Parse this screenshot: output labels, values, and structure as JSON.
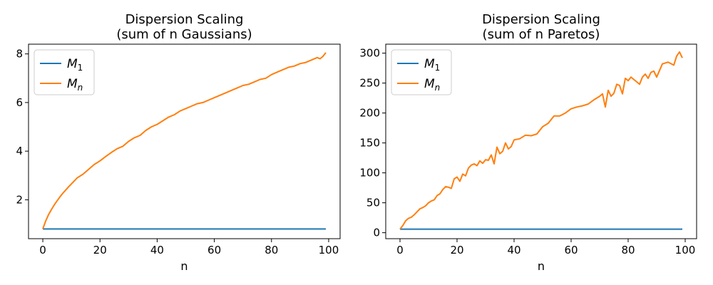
{
  "chart_data": [
    {
      "type": "line",
      "title": [
        "Dispersion Scaling",
        "(sum of n Gaussians)"
      ],
      "xlabel": "n",
      "ylabel": "",
      "xlim": [
        -5,
        104
      ],
      "ylim": [
        0.4,
        8.4
      ],
      "xticks": [
        0,
        20,
        40,
        60,
        80,
        100
      ],
      "yticks": [
        2,
        4,
        6,
        8
      ],
      "legend": "top-left",
      "grid": false,
      "series": [
        {
          "name": "M_1",
          "color": "#1f77b4",
          "x": [
            0,
            99
          ],
          "y": [
            0.8,
            0.8
          ]
        },
        {
          "name": "M_n",
          "color": "#ff7f0e",
          "x": [
            0,
            1,
            2,
            3,
            4,
            5,
            6,
            7,
            8,
            9,
            10,
            12,
            14,
            16,
            18,
            20,
            22,
            24,
            26,
            28,
            30,
            32,
            34,
            36,
            38,
            40,
            42,
            44,
            46,
            48,
            50,
            52,
            54,
            56,
            58,
            60,
            62,
            64,
            66,
            68,
            70,
            72,
            74,
            76,
            78,
            80,
            82,
            84,
            86,
            88,
            90,
            92,
            94,
            96,
            97,
            98,
            99
          ],
          "y": [
            0.8,
            1.13,
            1.39,
            1.6,
            1.79,
            1.96,
            2.12,
            2.27,
            2.4,
            2.53,
            2.65,
            2.9,
            3.05,
            3.25,
            3.45,
            3.6,
            3.78,
            3.95,
            4.1,
            4.2,
            4.4,
            4.55,
            4.65,
            4.85,
            5.0,
            5.1,
            5.25,
            5.4,
            5.5,
            5.65,
            5.75,
            5.85,
            5.95,
            6.0,
            6.1,
            6.2,
            6.3,
            6.4,
            6.5,
            6.6,
            6.7,
            6.75,
            6.85,
            6.95,
            7.0,
            7.15,
            7.25,
            7.35,
            7.45,
            7.5,
            7.6,
            7.65,
            7.75,
            7.85,
            7.8,
            7.9,
            8.05
          ]
        }
      ]
    },
    {
      "type": "line",
      "title": [
        "Dispersion Scaling",
        "(sum of n Paretos)"
      ],
      "xlabel": "n",
      "ylabel": "",
      "xlim": [
        -5,
        104
      ],
      "ylim": [
        -10,
        315
      ],
      "xticks": [
        0,
        20,
        40,
        60,
        80,
        100
      ],
      "yticks": [
        0,
        50,
        100,
        150,
        200,
        250,
        300
      ],
      "legend": "top-left",
      "grid": false,
      "series": [
        {
          "name": "M_1",
          "color": "#1f77b4",
          "x": [
            0,
            99
          ],
          "y": [
            6,
            6
          ]
        },
        {
          "name": "M_n",
          "color": "#ff7f0e",
          "x": [
            0,
            1,
            2,
            3,
            4,
            5,
            6,
            7,
            8,
            9,
            10,
            11,
            12,
            13,
            14,
            15,
            16,
            17,
            18,
            19,
            20,
            21,
            22,
            23,
            24,
            25,
            26,
            27,
            28,
            29,
            30,
            31,
            32,
            33,
            34,
            35,
            36,
            37,
            38,
            39,
            40,
            42,
            44,
            46,
            48,
            50,
            52,
            54,
            56,
            58,
            60,
            62,
            64,
            66,
            68,
            70,
            71,
            72,
            73,
            74,
            75,
            76,
            77,
            78,
            79,
            80,
            81,
            82,
            83,
            84,
            85,
            86,
            87,
            88,
            89,
            90,
            92,
            94,
            96,
            97,
            98,
            99
          ],
          "y": [
            6,
            12,
            20,
            24,
            26,
            30,
            35,
            40,
            42,
            45,
            50,
            53,
            55,
            62,
            65,
            72,
            77,
            76,
            74,
            90,
            93,
            86,
            98,
            95,
            108,
            113,
            115,
            112,
            120,
            116,
            122,
            121,
            130,
            115,
            143,
            132,
            136,
            150,
            140,
            144,
            155,
            157,
            163,
            162,
            165,
            177,
            183,
            195,
            195,
            200,
            207,
            210,
            212,
            215,
            222,
            228,
            232,
            210,
            238,
            228,
            233,
            248,
            246,
            232,
            258,
            254,
            260,
            256,
            252,
            248,
            260,
            265,
            258,
            268,
            270,
            260,
            282,
            285,
            280,
            295,
            302,
            292
          ]
        }
      ]
    }
  ]
}
